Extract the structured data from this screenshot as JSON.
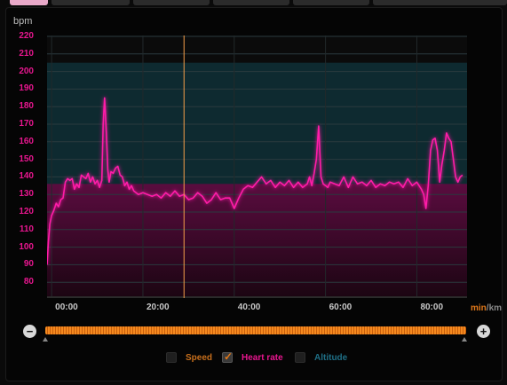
{
  "tabs": [
    {
      "label": "",
      "active": true
    },
    {
      "label": "",
      "active": false
    },
    {
      "label": "",
      "active": false
    },
    {
      "label": "",
      "active": false
    },
    {
      "label": "",
      "active": false
    },
    {
      "label": "",
      "active": false
    }
  ],
  "colors": {
    "heart_rate": "#ff1aa8",
    "speed": "#e0781a",
    "altitude": "#1f6f86",
    "marker": "#f5a04a",
    "zone_fill": "#0e2a30"
  },
  "zoom": {
    "out_label": "−",
    "in_label": "+"
  },
  "legend": [
    {
      "label": "Speed",
      "checked": false,
      "color": "#c86f1c"
    },
    {
      "label": "Heart rate",
      "checked": true,
      "color": "#e8168f"
    },
    {
      "label": "Altitude",
      "checked": false,
      "color": "#1f6f86"
    }
  ],
  "chart_data": {
    "type": "line",
    "ylabel": "bpm",
    "xunit_primary": "min",
    "xunit_separator": "/",
    "xunit_secondary": "km",
    "ylim": [
      70,
      220
    ],
    "xlim": [
      -1,
      91
    ],
    "y_ticks": [
      80,
      90,
      100,
      110,
      120,
      130,
      140,
      150,
      160,
      170,
      180,
      190,
      200,
      210,
      220
    ],
    "x_ticks": [
      {
        "value": 0,
        "label": "00:00"
      },
      {
        "value": 20,
        "label": "20:00"
      },
      {
        "value": 40,
        "label": "40:00"
      },
      {
        "value": 60,
        "label": "60:00"
      },
      {
        "value": 80,
        "label": "80:00"
      }
    ],
    "grid": true,
    "zone_band": [
      70,
      205
    ],
    "highlight_band": [
      70,
      136
    ],
    "cursor_x": 29,
    "series": [
      {
        "name": "Heart rate",
        "x": [
          -1,
          -0.7,
          -0.4,
          0,
          0.5,
          1,
          1.5,
          2,
          2.5,
          3,
          3.5,
          4,
          4.5,
          5,
          5.5,
          6,
          6.5,
          7,
          7.5,
          8,
          8.5,
          9,
          9.5,
          10,
          10.5,
          11,
          11.3,
          11.6,
          12,
          12.3,
          12.6,
          13,
          13.5,
          14,
          14.5,
          15,
          15.5,
          16,
          16.5,
          17,
          17.5,
          18,
          19,
          20,
          21,
          22,
          23,
          24,
          25,
          26,
          27,
          28,
          29,
          30,
          31,
          32,
          33,
          34,
          35,
          36,
          37,
          38,
          39,
          40,
          41,
          42,
          43,
          44,
          45,
          46,
          47,
          48,
          49,
          50,
          51,
          52,
          53,
          54,
          55,
          56,
          56.5,
          57,
          57.5,
          58,
          58.5,
          59,
          59.5,
          60,
          60.5,
          61,
          62,
          63,
          64,
          65,
          66,
          67,
          68,
          69,
          70,
          71,
          72,
          73,
          74,
          75,
          76,
          77,
          78,
          79,
          80,
          81,
          81.5,
          82,
          82.5,
          83,
          83.5,
          84,
          84.5,
          85,
          85.5,
          86,
          86.5,
          87,
          87.5,
          88,
          88.5,
          89,
          89.5,
          90
        ],
        "values": [
          90,
          103,
          113,
          118,
          121,
          125,
          123,
          127,
          128,
          137,
          139,
          138,
          139,
          133,
          136,
          134,
          141,
          140,
          139,
          142,
          137,
          140,
          136,
          138,
          134,
          138,
          170,
          185,
          165,
          144,
          137,
          143,
          142,
          145,
          146,
          141,
          140,
          135,
          137,
          133,
          135,
          132,
          130,
          131,
          130,
          129,
          130,
          128,
          131,
          129,
          132,
          129,
          130,
          127,
          128,
          131,
          129,
          125,
          127,
          131,
          127,
          128,
          128,
          122,
          128,
          133,
          135,
          134,
          137,
          140,
          136,
          138,
          134,
          137,
          135,
          138,
          134,
          137,
          134,
          136,
          140,
          135,
          142,
          150,
          169,
          140,
          136,
          135,
          134,
          137,
          136,
          135,
          140,
          134,
          140,
          136,
          137,
          135,
          138,
          134,
          136,
          135,
          137,
          136,
          137,
          134,
          139,
          135,
          137,
          133,
          130,
          122,
          135,
          155,
          161,
          162,
          155,
          137,
          147,
          155,
          165,
          162,
          160,
          150,
          140,
          137,
          140,
          141
        ]
      }
    ]
  }
}
